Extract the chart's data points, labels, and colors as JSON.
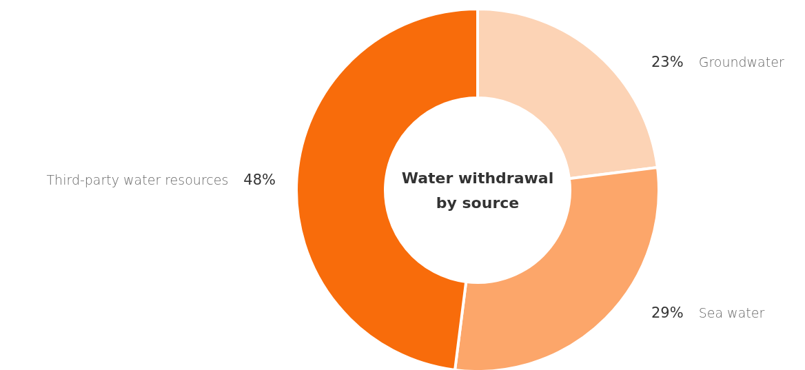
{
  "chart_data": {
    "type": "donut",
    "title": "Water withdrawal by source",
    "categories": [
      "Groundwater",
      "Sea water",
      "Third-party water resources"
    ],
    "values": [
      23,
      29,
      48
    ],
    "colors": [
      "#fcd3b5",
      "#fca66a",
      "#f86c0b"
    ],
    "value_labels": [
      "23%",
      "29%",
      "48%"
    ]
  }
}
